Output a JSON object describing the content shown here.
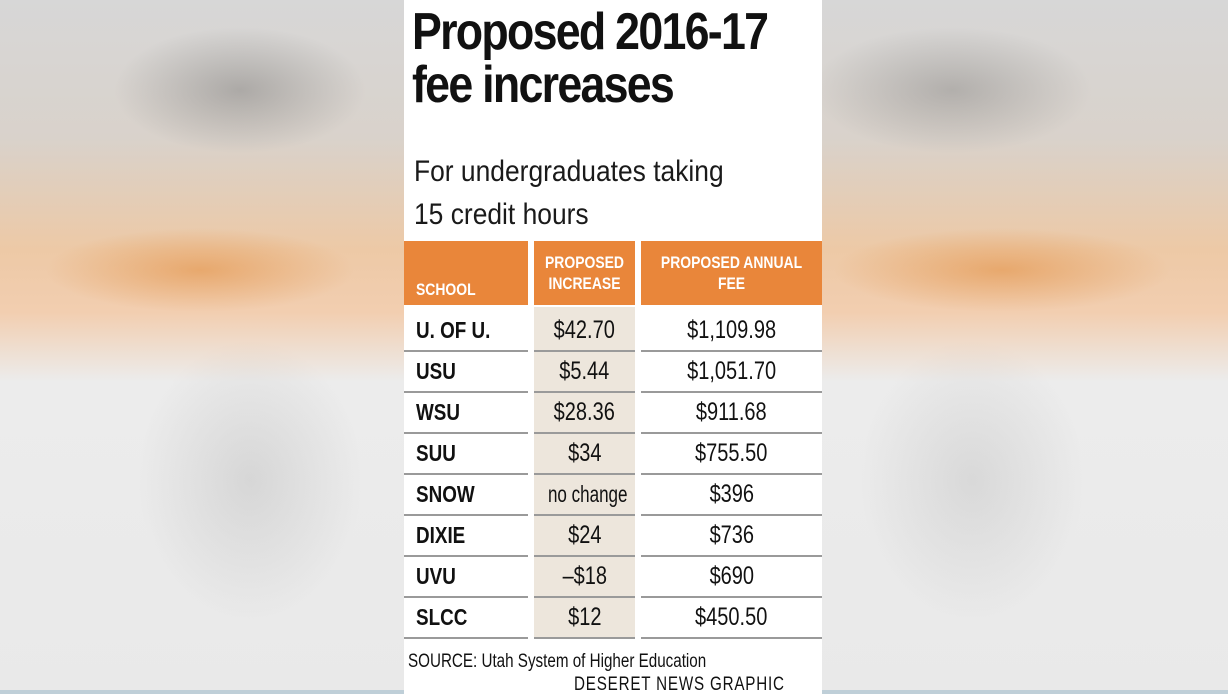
{
  "chart_data": {
    "type": "table",
    "title_lines": [
      "Proposed 2016-17",
      "fee increases"
    ],
    "subtitle_lines": [
      "For undergraduates taking",
      "15 credit hours"
    ],
    "headers": {
      "school": "SCHOOL",
      "increase_lines": [
        "PROPOSED",
        "INCREASE"
      ],
      "fee_lines": [
        "PROPOSED ANNUAL",
        "FEE"
      ]
    },
    "rows": [
      {
        "school": "U. OF U.",
        "increase": "$42.70",
        "fee": "$1,109.98"
      },
      {
        "school": "USU",
        "increase": "$5.44",
        "fee": "$1,051.70"
      },
      {
        "school": "WSU",
        "increase": "$28.36",
        "fee": "$911.68"
      },
      {
        "school": "SUU",
        "increase": "$34",
        "fee": "$755.50"
      },
      {
        "school": "SNOW",
        "increase": "no change",
        "fee": "$396"
      },
      {
        "school": "DIXIE",
        "increase": "$24",
        "fee": "$736"
      },
      {
        "school": "UVU",
        "increase": "–$18",
        "fee": "$690"
      },
      {
        "school": "SLCC",
        "increase": "$12",
        "fee": "$450.50"
      }
    ],
    "source": "SOURCE: Utah System of Higher Education",
    "credit": "DESERET NEWS GRAPHIC",
    "colors": {
      "header": "#e9863a",
      "increase_column": "#ede6dc",
      "rules": "#9a9a9a"
    }
  }
}
